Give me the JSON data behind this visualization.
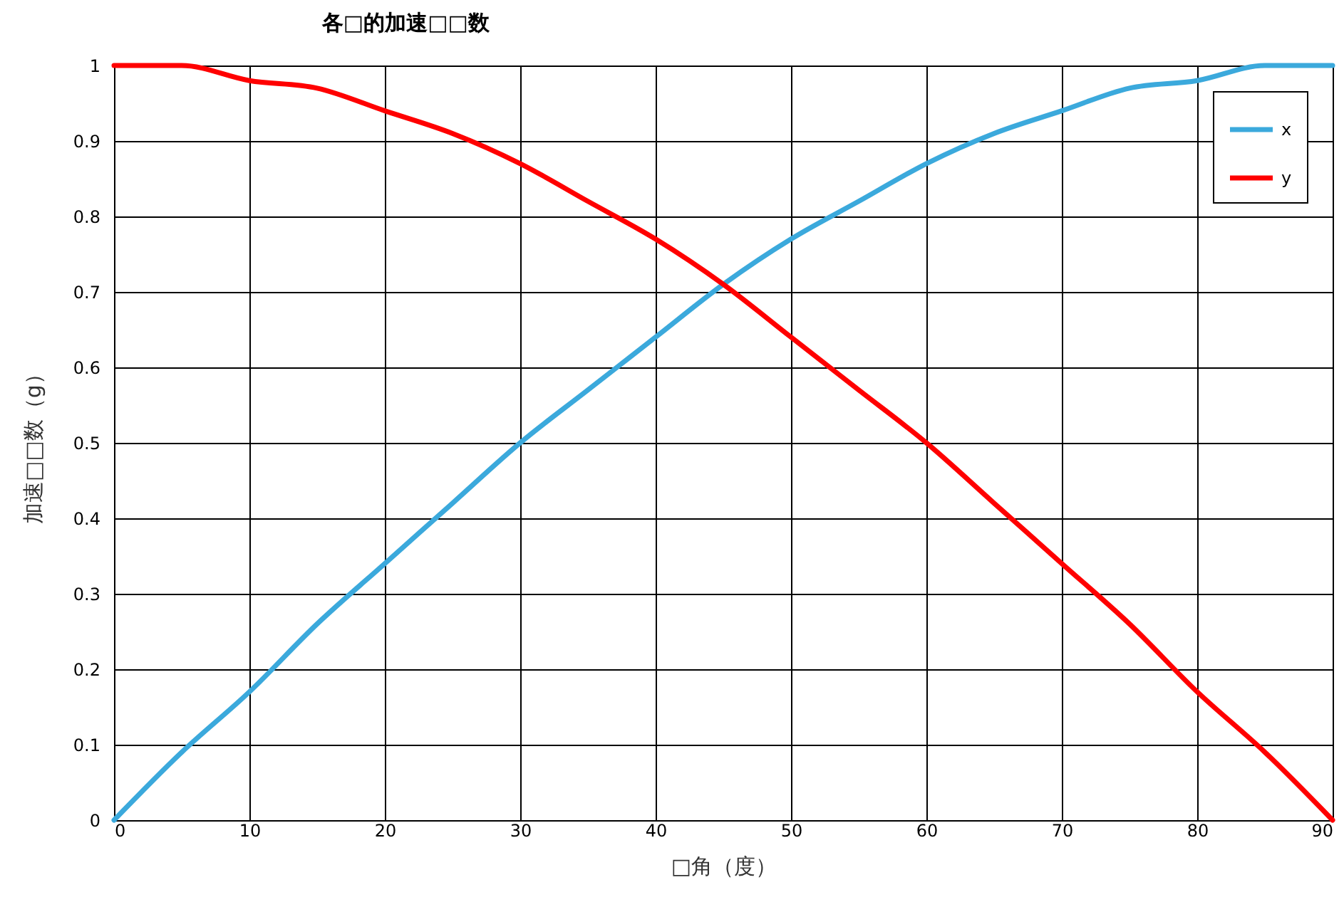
{
  "chart_data": {
    "type": "line",
    "title": "各□的加速□□数",
    "xlabel": "□角（度）",
    "ylabel": "加速□□数（g）",
    "x": [
      0,
      5,
      10,
      15,
      20,
      25,
      30,
      35,
      40,
      45,
      50,
      55,
      60,
      65,
      70,
      75,
      80,
      85,
      90
    ],
    "series": [
      {
        "name": "x",
        "color": "#3ba9dc",
        "values": [
          0,
          0.09,
          0.17,
          0.26,
          0.34,
          0.42,
          0.5,
          0.57,
          0.64,
          0.71,
          0.77,
          0.82,
          0.87,
          0.91,
          0.94,
          0.97,
          0.98,
          1,
          1
        ]
      },
      {
        "name": "y",
        "color": "#ff0000",
        "values": [
          1,
          1,
          0.98,
          0.97,
          0.94,
          0.91,
          0.87,
          0.82,
          0.77,
          0.71,
          0.64,
          0.57,
          0.5,
          0.42,
          0.34,
          0.26,
          0.17,
          0.09,
          0
        ]
      }
    ],
    "xlim": [
      0,
      90
    ],
    "xticks": [
      0,
      10,
      20,
      30,
      40,
      50,
      60,
      70,
      80,
      90
    ],
    "ylim": [
      0,
      1
    ],
    "yticks": [
      0,
      0.1,
      0.2,
      0.3,
      0.4,
      0.5,
      0.6,
      0.7,
      0.8,
      0.9,
      1
    ],
    "grid": true,
    "legend": "top right",
    "marker": "none",
    "line_style": "solid"
  }
}
